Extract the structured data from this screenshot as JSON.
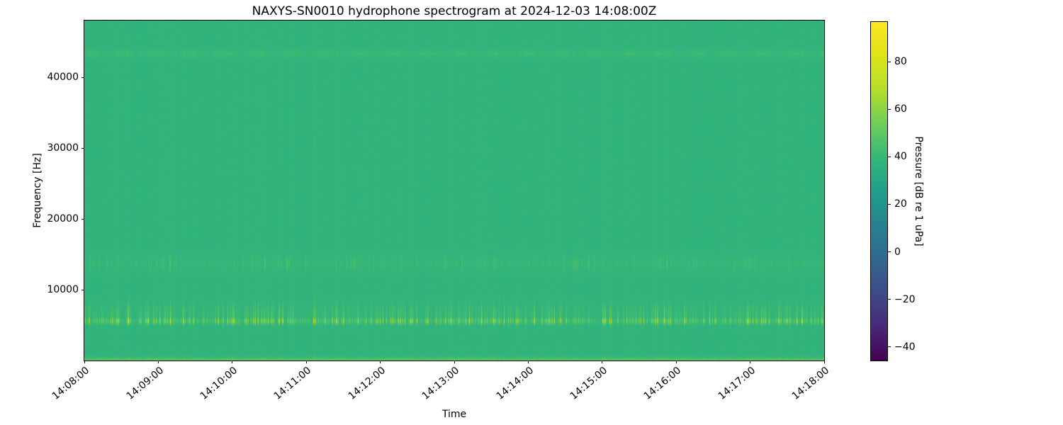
{
  "figure": {
    "background_color": "#ffffff",
    "text_color": "#000000"
  },
  "chart_data": {
    "type": "heatmap",
    "subtype": "spectrogram",
    "title": "NAXYS-SN0010 hydrophone spectrogram at 2024-12-03 14:08:00Z",
    "xlabel": "Time",
    "ylabel": "Frequency [Hz]",
    "grid": false,
    "x_tick_labels": [
      "14:08:00",
      "14:09:00",
      "14:10:00",
      "14:11:00",
      "14:12:00",
      "14:13:00",
      "14:14:00",
      "14:15:00",
      "14:16:00",
      "14:17:00",
      "14:18:00"
    ],
    "x_range": [
      "14:08:00",
      "14:18:00"
    ],
    "y_ticks": [
      {
        "value": 10000,
        "label": "10000"
      },
      {
        "value": 20000,
        "label": "20000"
      },
      {
        "value": 30000,
        "label": "30000"
      },
      {
        "value": 40000,
        "label": "40000"
      }
    ],
    "y_range_hz": [
      0,
      48000
    ],
    "colormap": "viridis",
    "colormap_stops": [
      "#440154",
      "#482878",
      "#3e4a89",
      "#31688e",
      "#26828e",
      "#1f9e89",
      "#35b779",
      "#6ece58",
      "#b5de2b",
      "#dfe318",
      "#fde725"
    ],
    "colorbar": {
      "label": "Pressure [dB re 1 uPa]",
      "vmin": -46,
      "vmax": 97,
      "ticks": [
        {
          "value": 80,
          "label": "80"
        },
        {
          "value": 60,
          "label": "60"
        },
        {
          "value": 40,
          "label": "40"
        },
        {
          "value": 20,
          "label": "20"
        },
        {
          "value": 0,
          "label": "0"
        },
        {
          "value": -20,
          "label": "−20"
        },
        {
          "value": -40,
          "label": "−40"
        }
      ]
    },
    "background_level_db": 37,
    "noise_db": 1.1,
    "features": [
      {
        "name": "click-train-core-5.5kHz",
        "kind": "gauss",
        "center_hz": 5550,
        "width_hz": 280,
        "base_db": 2.5,
        "streak_db": 29,
        "streak": "s1"
      },
      {
        "name": "click-train-tail-6.6kHz",
        "kind": "gauss",
        "center_hz": 6600,
        "width_hz": 1000,
        "base_db": 0.5,
        "streak_db": 13,
        "streak": "s1"
      },
      {
        "name": "mid-click-band-13.7kHz",
        "kind": "gauss",
        "center_hz": 13700,
        "width_hz": 800,
        "base_db": 1.5,
        "streak_db": 10,
        "streak": "s2"
      },
      {
        "name": "high-tonal-band-43.4kHz",
        "kind": "gauss",
        "center_hz": 43350,
        "width_hz": 420,
        "base_db": 3.0,
        "streak_db": 2.5,
        "wobble_db": 1.2,
        "streak": "s3"
      },
      {
        "name": "low-frequency-noise",
        "kind": "lowpass",
        "decay_hz": 300,
        "base_db": 15,
        "streak_db": 7,
        "streak": "s1"
      },
      {
        "name": "broadband-column-striping",
        "kind": "broadband",
        "base_db": 0,
        "streak_db": 1.8,
        "streak": "sB"
      }
    ]
  }
}
